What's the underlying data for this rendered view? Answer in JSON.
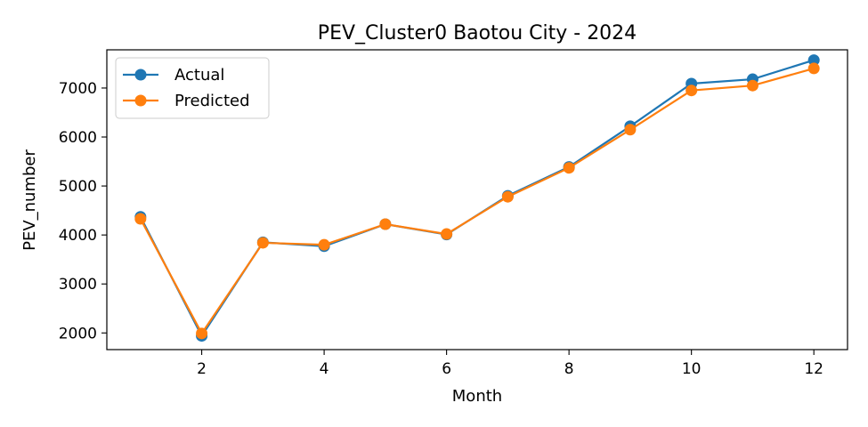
{
  "chart_data": {
    "type": "line",
    "title": "PEV_Cluster0 Baotou City - 2024",
    "xlabel": "Month",
    "ylabel": "PEV_number",
    "x": [
      1,
      2,
      3,
      4,
      5,
      6,
      7,
      8,
      9,
      10,
      11,
      12
    ],
    "xlim": [
      0.45,
      12.55
    ],
    "ylim": [
      1660,
      7780
    ],
    "xticks": [
      2,
      4,
      6,
      8,
      10,
      12
    ],
    "yticks": [
      2000,
      3000,
      4000,
      5000,
      6000,
      7000
    ],
    "grid": false,
    "legend_position": "top-left",
    "series": [
      {
        "name": "Actual",
        "color": "#1f77b4",
        "marker": "circle",
        "values": [
          4370,
          1940,
          3850,
          3770,
          4220,
          4010,
          4800,
          5390,
          6220,
          7090,
          7180,
          7570
        ]
      },
      {
        "name": "Predicted",
        "color": "#ff7f0e",
        "marker": "circle",
        "values": [
          4330,
          1990,
          3840,
          3800,
          4220,
          4020,
          4780,
          5370,
          6150,
          6950,
          7050,
          7400
        ]
      }
    ]
  }
}
